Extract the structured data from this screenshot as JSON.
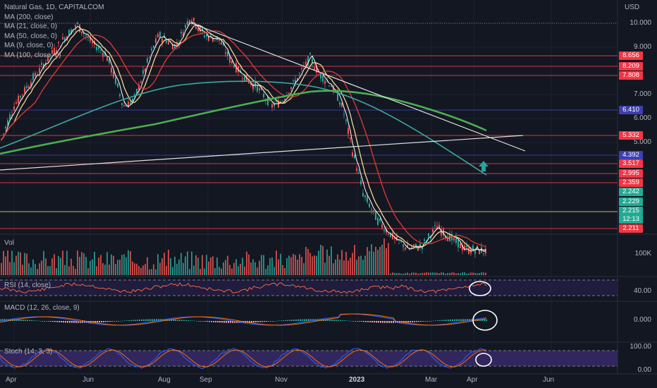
{
  "legend": {
    "symbol": "Natural Gas, 1D, CAPITALCOM",
    "ma_lines": [
      "MA (200, close)",
      "MA (21, close, 0)",
      "MA (50, close, 0)",
      "MA (9, close, 0)",
      "MA (100, close, 0)"
    ]
  },
  "axis": {
    "currency": "USD",
    "price_ticks": [
      {
        "label": "10.000",
        "value": 10.0
      },
      {
        "label": "9.000",
        "value": 9.0
      },
      {
        "label": "7.000",
        "value": 7.0
      },
      {
        "label": "6.000",
        "value": 6.0
      },
      {
        "label": "5.000",
        "value": 5.0
      }
    ],
    "vol_tick": "100K",
    "rsi_tick": "40.00",
    "macd_tick": "0.000",
    "stoch_ticks": [
      "100.00",
      "0.00"
    ]
  },
  "price_tags": [
    {
      "label": "8.656",
      "value": 8.656,
      "color": "#f23645"
    },
    {
      "label": "8.209",
      "value": 8.209,
      "color": "#f23645"
    },
    {
      "label": "7.808",
      "value": 7.808,
      "color": "#f23645"
    },
    {
      "label": "6.410",
      "value": 6.41,
      "color": "#3f3fb0"
    },
    {
      "label": "5.332",
      "value": 5.332,
      "color": "#f23645"
    },
    {
      "label": "4.392",
      "value": 4.392,
      "color": "#3f3fb0"
    },
    {
      "label": "3.517",
      "value": 3.517,
      "color": "#f23645"
    },
    {
      "label": "2.995",
      "value": 2.995,
      "color": "#f23645"
    },
    {
      "label": "2.359",
      "value": 2.359,
      "color": "#f23645"
    },
    {
      "label": "2.242",
      "value": 2.242,
      "color": "#22ab94"
    },
    {
      "label": "2.229",
      "value": 2.229,
      "color": "#22ab94"
    },
    {
      "label": "2.215",
      "value": 2.215,
      "color": "#22ab94"
    },
    {
      "label": "12:13",
      "value": 2.215,
      "color": "#22ab94"
    },
    {
      "label": "2.211",
      "value": 2.211,
      "color": "#f23645"
    }
  ],
  "panes": {
    "vol": "Vol",
    "rsi": "RSI (14, close)",
    "macd": "MACD (12, 26, close, 9)",
    "stoch": "Stoch (14, 3, 3)"
  },
  "dates": [
    "Apr",
    "Jun",
    "Aug",
    "Sep",
    "Nov",
    "2023",
    "Mar",
    "Apr",
    "Jun"
  ],
  "colors": {
    "background": "#131722",
    "up": "#26a69a",
    "down": "#ef5350",
    "resistance": "#f23645",
    "support_blue": "#3f3fb0",
    "ma200": "#4caf50",
    "ma100": "#3fa7a0",
    "ma50": "#e53935",
    "ma21": "#f6d68e",
    "ma9": "#ffffff",
    "stoch_band": "#3a2a6e",
    "rsi_band": "#2a2050"
  },
  "icons": [
    "arrow-up-icon"
  ]
}
